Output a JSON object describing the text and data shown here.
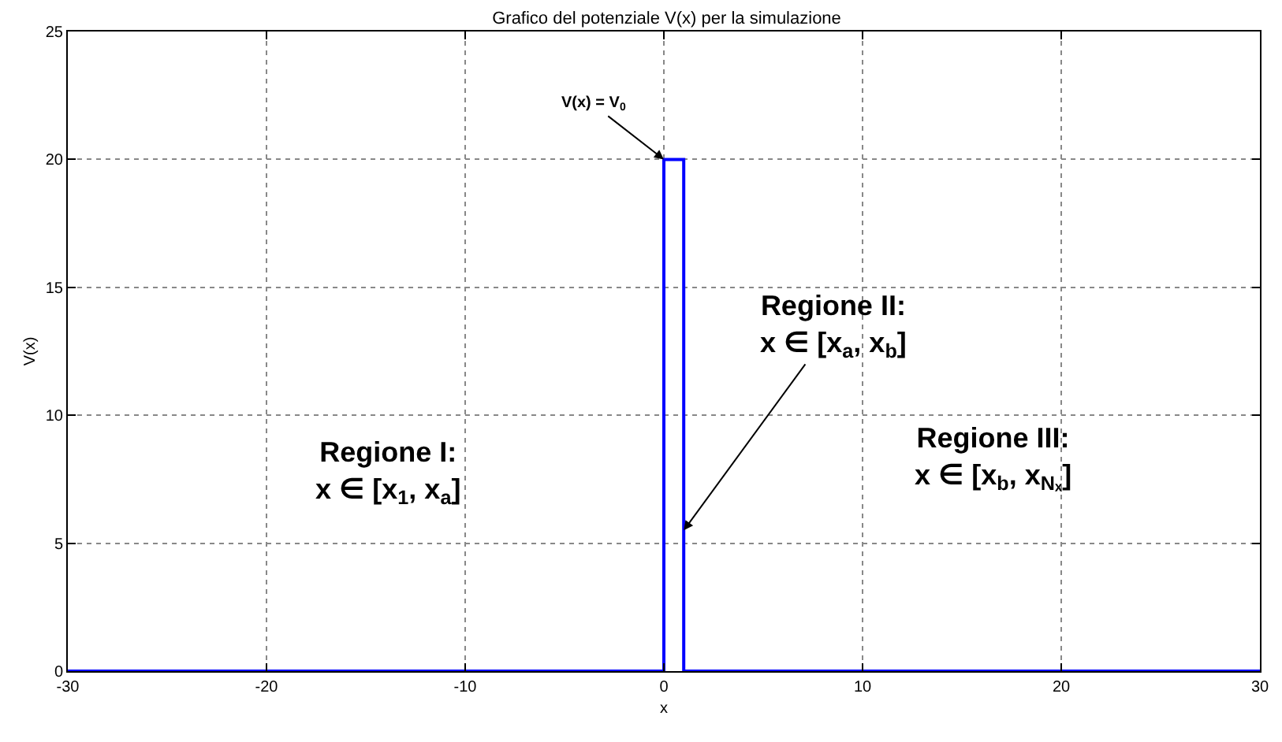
{
  "chart_data": {
    "type": "line",
    "title": "Grafico del potenziale V(x) per la simulazione",
    "xlabel": "x",
    "ylabel": "V(x)",
    "x": [
      -30,
      0,
      0,
      1,
      1,
      30
    ],
    "series": [
      {
        "color": "#0000ff",
        "values": [
          0,
          0,
          20,
          20,
          0,
          0
        ]
      }
    ],
    "xlim": [
      -30,
      30
    ],
    "xticks": [
      -30,
      -20,
      -10,
      0,
      10,
      20,
      30
    ],
    "ylim": [
      0,
      25
    ],
    "yticks": [
      0,
      5,
      10,
      15,
      20,
      25
    ],
    "grid": true,
    "marker": "none",
    "line_style": "solid",
    "annotations": [
      {
        "text": "V(x) = V$_{0}$",
        "x": 0,
        "y": 20
      },
      {
        "text": "Regione II:\nx ∈ [x$_{a}$, x$_{b}$]",
        "x": 1,
        "y": 5.5
      },
      "Regione I:\nx ∈ [x$_{1}$, x$_{a}$]",
      "Regione III:\nx ∈ [x$_{b}$, x$_{Nₓ}$]"
    ]
  }
}
